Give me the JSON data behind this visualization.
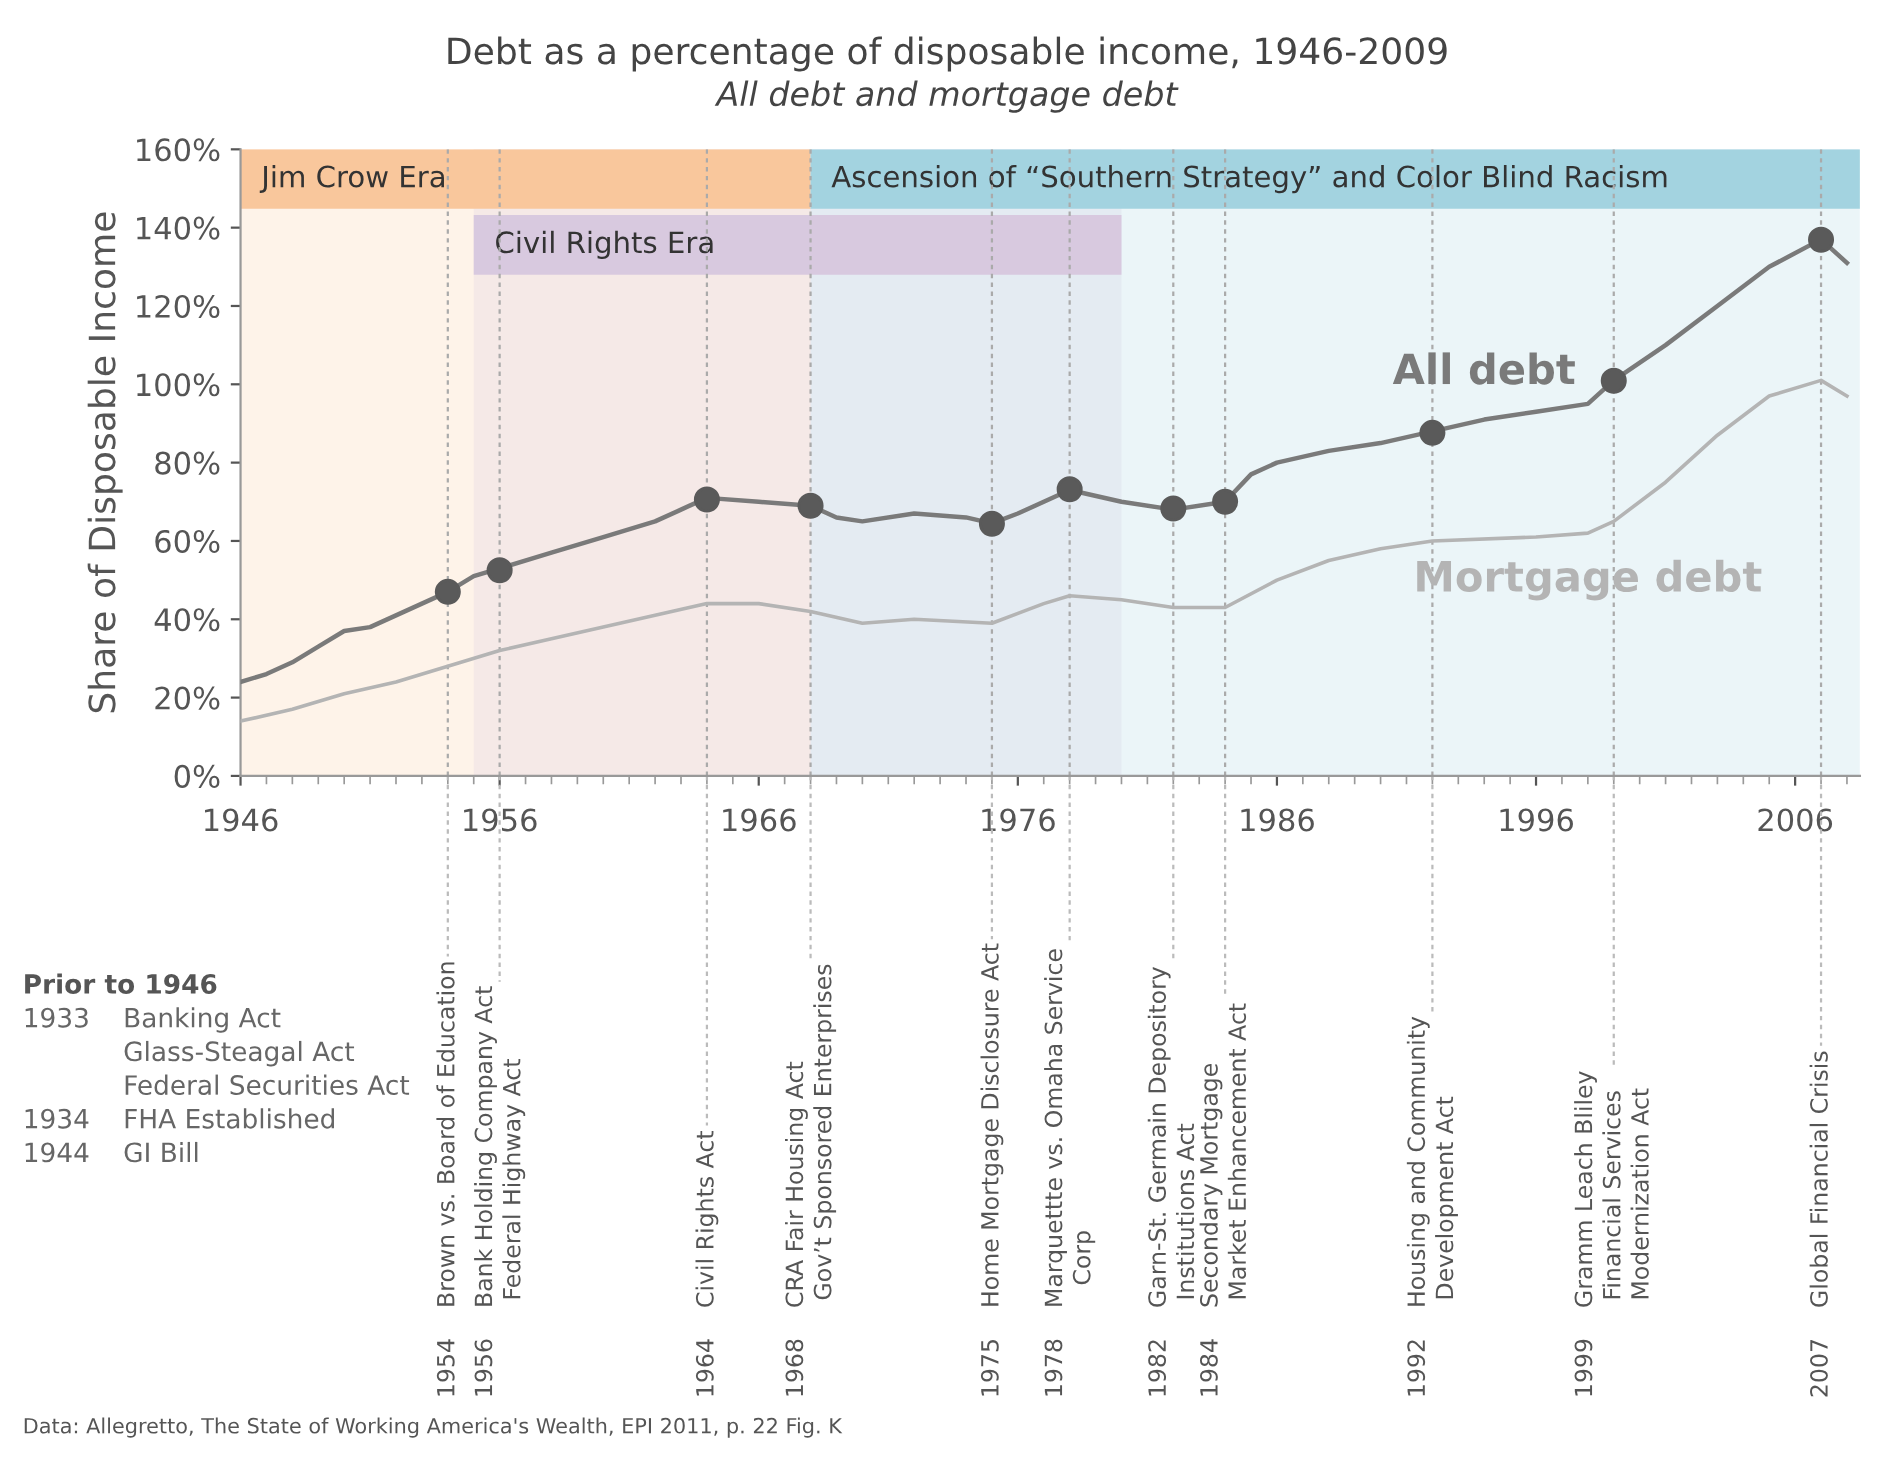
{
  "chart_data": {
    "type": "line",
    "title": "Debt as a percentage of disposable income, 1946-2009",
    "subtitle": "All debt and mortgage debt",
    "ylabel": "Share of Disposable Income",
    "xlim": [
      1946,
      2008.5
    ],
    "xticks": [
      1946,
      1956,
      1966,
      1976,
      1986,
      1996,
      2006
    ],
    "ylim": [
      0,
      160
    ],
    "yticks": [
      {
        "value": 0,
        "label": "0%"
      },
      {
        "value": 20,
        "label": "20%"
      },
      {
        "value": 40,
        "label": "40%"
      },
      {
        "value": 60,
        "label": "60%"
      },
      {
        "value": 80,
        "label": "80%"
      },
      {
        "value": 100,
        "label": "100%"
      },
      {
        "value": 120,
        "label": "120%"
      },
      {
        "value": 140,
        "label": "140%"
      },
      {
        "value": 160,
        "label": "160%"
      }
    ],
    "grid": false,
    "legend": false,
    "line_style": "solid",
    "marker": "none",
    "series": [
      {
        "name": "All debt",
        "color": "#7a7a7a",
        "x": [
          1946,
          1947,
          1948,
          1949,
          1950,
          1951,
          1952,
          1953,
          1954,
          1955,
          1956,
          1958,
          1960,
          1962,
          1963,
          1964,
          1966,
          1968,
          1969,
          1970,
          1972,
          1974,
          1975,
          1976,
          1978,
          1980,
          1982,
          1984,
          1985,
          1986,
          1988,
          1990,
          1992,
          1994,
          1996,
          1998,
          1999,
          2001,
          2003,
          2005,
          2007,
          2008
        ],
        "values": [
          24,
          26,
          29,
          33,
          37,
          38,
          41,
          44,
          47,
          51,
          53,
          57,
          61,
          65,
          68,
          71,
          70,
          69,
          66,
          65,
          67,
          66,
          64.5,
          67,
          73,
          70,
          68,
          70,
          77,
          80,
          83,
          85,
          88,
          91,
          93,
          95,
          101,
          110,
          120,
          130,
          137,
          131
        ]
      },
      {
        "name": "Mortgage debt",
        "color": "#b4b4b4",
        "x": [
          1946,
          1948,
          1950,
          1952,
          1954,
          1956,
          1958,
          1960,
          1962,
          1964,
          1966,
          1968,
          1970,
          1972,
          1975,
          1977,
          1978,
          1980,
          1982,
          1984,
          1986,
          1988,
          1990,
          1992,
          1996,
          1998,
          1999,
          2001,
          2003,
          2005,
          2007,
          2008
        ],
        "values": [
          14,
          17,
          21,
          24,
          28,
          32,
          35,
          38,
          41,
          44,
          44,
          42,
          39,
          40,
          39,
          44,
          46,
          45,
          43,
          43,
          50,
          55,
          58,
          60,
          61,
          62,
          65,
          75,
          87,
          97,
          101,
          97
        ]
      },
      {
        "type": "scatter",
        "marker": "circle",
        "color": "#5a5a5a",
        "x": [
          1954,
          1956,
          1964,
          1968,
          1975,
          1978,
          1982,
          1984,
          1992,
          1999,
          2007
        ],
        "values": [
          47,
          52.5,
          70.6,
          69,
          64.4,
          73.2,
          68.3,
          70,
          87.6,
          100.9,
          136.9
        ]
      }
    ],
    "bands": [
      {
        "axis": "x",
        "from": 1946,
        "to": 1968,
        "label": "Jim Crow Era",
        "color": "#f9c79c"
      },
      {
        "axis": "x",
        "from": 1955,
        "to": 1980,
        "label": "Civil Rights Era",
        "color": "#d8c9df"
      },
      {
        "axis": "x",
        "from": 1968,
        "to": 2008.5,
        "label": "Ascension of “Southern Strategy” and Color Blind Racism",
        "color": "#a3d3e0"
      }
    ],
    "ref_lines": [
      {
        "axis": "x",
        "value": 1954,
        "label": "1954    Brown vs. Board of Education"
      },
      {
        "axis": "x",
        "value": 1956,
        "label": "1956    Bank Holding Company Act\n             Federal Highway Act"
      },
      {
        "axis": "x",
        "value": 1964,
        "label": "1964    Civil Rights Act"
      },
      {
        "axis": "x",
        "value": 1968,
        "label": "1968    CRA Fair Housing Act\n             Gov’t Sponsored Enterprises"
      },
      {
        "axis": "x",
        "value": 1975,
        "label": "1975    Home Mortgage Disclosure Act"
      },
      {
        "axis": "x",
        "value": 1978,
        "label": "1978    Marquettte vs. Omaha Service\n               Corp"
      },
      {
        "axis": "x",
        "value": 1982,
        "label": "1982    Garn-St. Germain Depository\n             Institutions Act"
      },
      {
        "axis": "x",
        "value": 1984,
        "label": "1984    Secondary Mortgage\n             Market Enhancement Act"
      },
      {
        "axis": "x",
        "value": 1992,
        "label": "1992    Housing and Community\n             Development Act"
      },
      {
        "axis": "x",
        "value": 1999,
        "label": "1999    Gramm Leach Bliley\n             Financial Services\n             Modernization Act"
      },
      {
        "axis": "x",
        "value": 2007,
        "label": "2007    Global Financial Crisis"
      }
    ],
    "annotations": [
      "Prior to 1946",
      "1933  Banking Act",
      "Glass-Steagal Act",
      "Federal Securities Act",
      "1934  FHA Established",
      "1944  GI Bill",
      "Data: Allegretto, The State of Working America's Wealth, EPI 2011, p. 22 Fig. K"
    ]
  }
}
